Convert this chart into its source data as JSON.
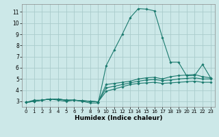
{
  "xlabel": "Humidex (Indice chaleur)",
  "ylabel": "",
  "background_color": "#cce8e8",
  "grid_color": "#aacccc",
  "line_color": "#1a7a6e",
  "x_ticks": [
    0,
    1,
    2,
    3,
    4,
    5,
    6,
    7,
    8,
    9,
    10,
    11,
    12,
    13,
    14,
    15,
    16,
    17,
    18,
    19,
    20,
    21,
    22,
    23
  ],
  "y_ticks": [
    3,
    4,
    5,
    6,
    7,
    8,
    9,
    10,
    11
  ],
  "ylim": [
    2.5,
    11.7
  ],
  "xlim": [
    -0.5,
    23.5
  ],
  "series": [
    {
      "x": [
        0,
        1,
        2,
        3,
        4,
        5,
        6,
        7,
        8,
        9,
        10,
        11,
        12,
        13,
        14,
        15,
        16,
        17,
        18,
        19,
        20,
        21,
        22,
        23
      ],
      "y": [
        2.9,
        3.1,
        3.1,
        3.2,
        3.1,
        3.0,
        3.1,
        3.0,
        2.85,
        2.85,
        6.2,
        7.6,
        9.0,
        10.5,
        11.3,
        11.25,
        11.1,
        8.7,
        6.5,
        6.5,
        5.3,
        5.3,
        6.3,
        5.1
      ]
    },
    {
      "x": [
        0,
        1,
        2,
        3,
        4,
        5,
        6,
        7,
        8,
        9,
        10,
        11,
        12,
        13,
        14,
        15,
        16,
        17,
        18,
        19,
        20,
        21,
        22,
        23
      ],
      "y": [
        2.9,
        3.0,
        3.1,
        3.2,
        3.2,
        3.1,
        3.1,
        3.05,
        3.0,
        2.95,
        4.5,
        4.6,
        4.7,
        4.8,
        5.0,
        5.1,
        5.15,
        5.0,
        5.2,
        5.3,
        5.35,
        5.4,
        5.2,
        5.1
      ]
    },
    {
      "x": [
        0,
        1,
        2,
        3,
        4,
        5,
        6,
        7,
        8,
        9,
        10,
        11,
        12,
        13,
        14,
        15,
        16,
        17,
        18,
        19,
        20,
        21,
        22,
        23
      ],
      "y": [
        2.9,
        3.0,
        3.1,
        3.2,
        3.2,
        3.1,
        3.1,
        3.05,
        3.0,
        2.95,
        4.2,
        4.35,
        4.5,
        4.65,
        4.8,
        4.9,
        4.95,
        4.85,
        4.9,
        5.0,
        5.05,
        5.1,
        5.0,
        5.0
      ]
    },
    {
      "x": [
        0,
        1,
        2,
        3,
        4,
        5,
        6,
        7,
        8,
        9,
        10,
        11,
        12,
        13,
        14,
        15,
        16,
        17,
        18,
        19,
        20,
        21,
        22,
        23
      ],
      "y": [
        2.9,
        3.0,
        3.1,
        3.2,
        3.2,
        3.1,
        3.1,
        3.05,
        3.0,
        2.95,
        3.9,
        4.1,
        4.3,
        4.5,
        4.6,
        4.65,
        4.7,
        4.6,
        4.65,
        4.7,
        4.75,
        4.8,
        4.7,
        4.7
      ]
    }
  ]
}
